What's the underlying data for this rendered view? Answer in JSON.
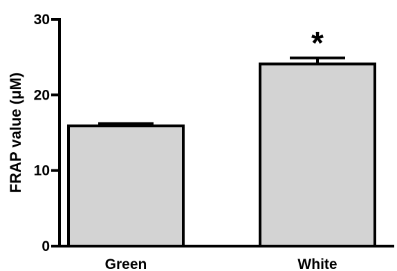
{
  "chart_data": {
    "type": "bar",
    "title": "",
    "xlabel": "",
    "ylabel": "FRAP value (μM)",
    "ylim": [
      0,
      30
    ],
    "yticks": [
      0,
      10,
      20,
      30
    ],
    "categories": [
      "Green",
      "White"
    ],
    "values": [
      15.9,
      24.1
    ],
    "errors": [
      0.3,
      0.8
    ],
    "annotations": [
      {
        "category": "White",
        "text": "*"
      }
    ],
    "grid": false,
    "legend": "none",
    "bar_color": "#d3d3d3",
    "edge_color": "#000000"
  }
}
